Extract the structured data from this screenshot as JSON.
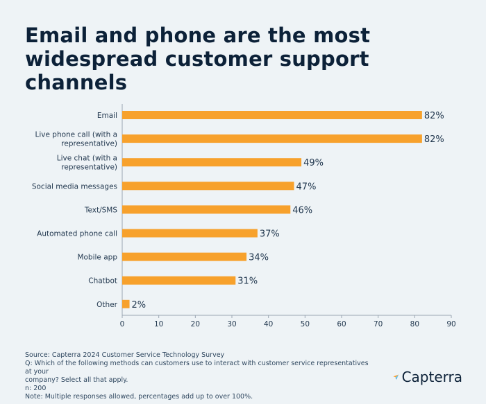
{
  "title": "Email and phone are the most widespread customer support channels",
  "chart_data": {
    "type": "bar",
    "orientation": "horizontal",
    "categories": [
      [
        "Email"
      ],
      [
        "Live phone call (with a",
        "representative)"
      ],
      [
        "Live chat (with a",
        "representative)"
      ],
      [
        "Social media messages"
      ],
      [
        "Text/SMS"
      ],
      [
        "Automated phone call"
      ],
      [
        "Mobile app"
      ],
      [
        "Chatbot"
      ],
      [
        "Other"
      ]
    ],
    "values": [
      82,
      82,
      49,
      47,
      46,
      37,
      34,
      31,
      2
    ],
    "value_labels": [
      "82%",
      "82%",
      "49%",
      "47%",
      "46%",
      "37%",
      "34%",
      "31%",
      "2%"
    ],
    "xlim": [
      0,
      90
    ],
    "xticks": [
      "0",
      "10",
      "20",
      "30",
      "40",
      "50",
      "60",
      "70",
      "80",
      "90"
    ],
    "bar_color": "#f7a12c",
    "grid": false,
    "xlabel": "",
    "ylabel": ""
  },
  "footer": {
    "source": "Source: Capterra 2024 Customer Service Technology Survey",
    "question_line1": "Q: Which of the following methods can customers use to interact with customer service representatives at your",
    "question_line2": "company? Select all that apply.",
    "n": "n: 200",
    "note": "Note: Multiple responses allowed, percentages add up to over 100%."
  },
  "logo": {
    "text": "Capterra",
    "icon": "capterra-arrow-icon"
  }
}
